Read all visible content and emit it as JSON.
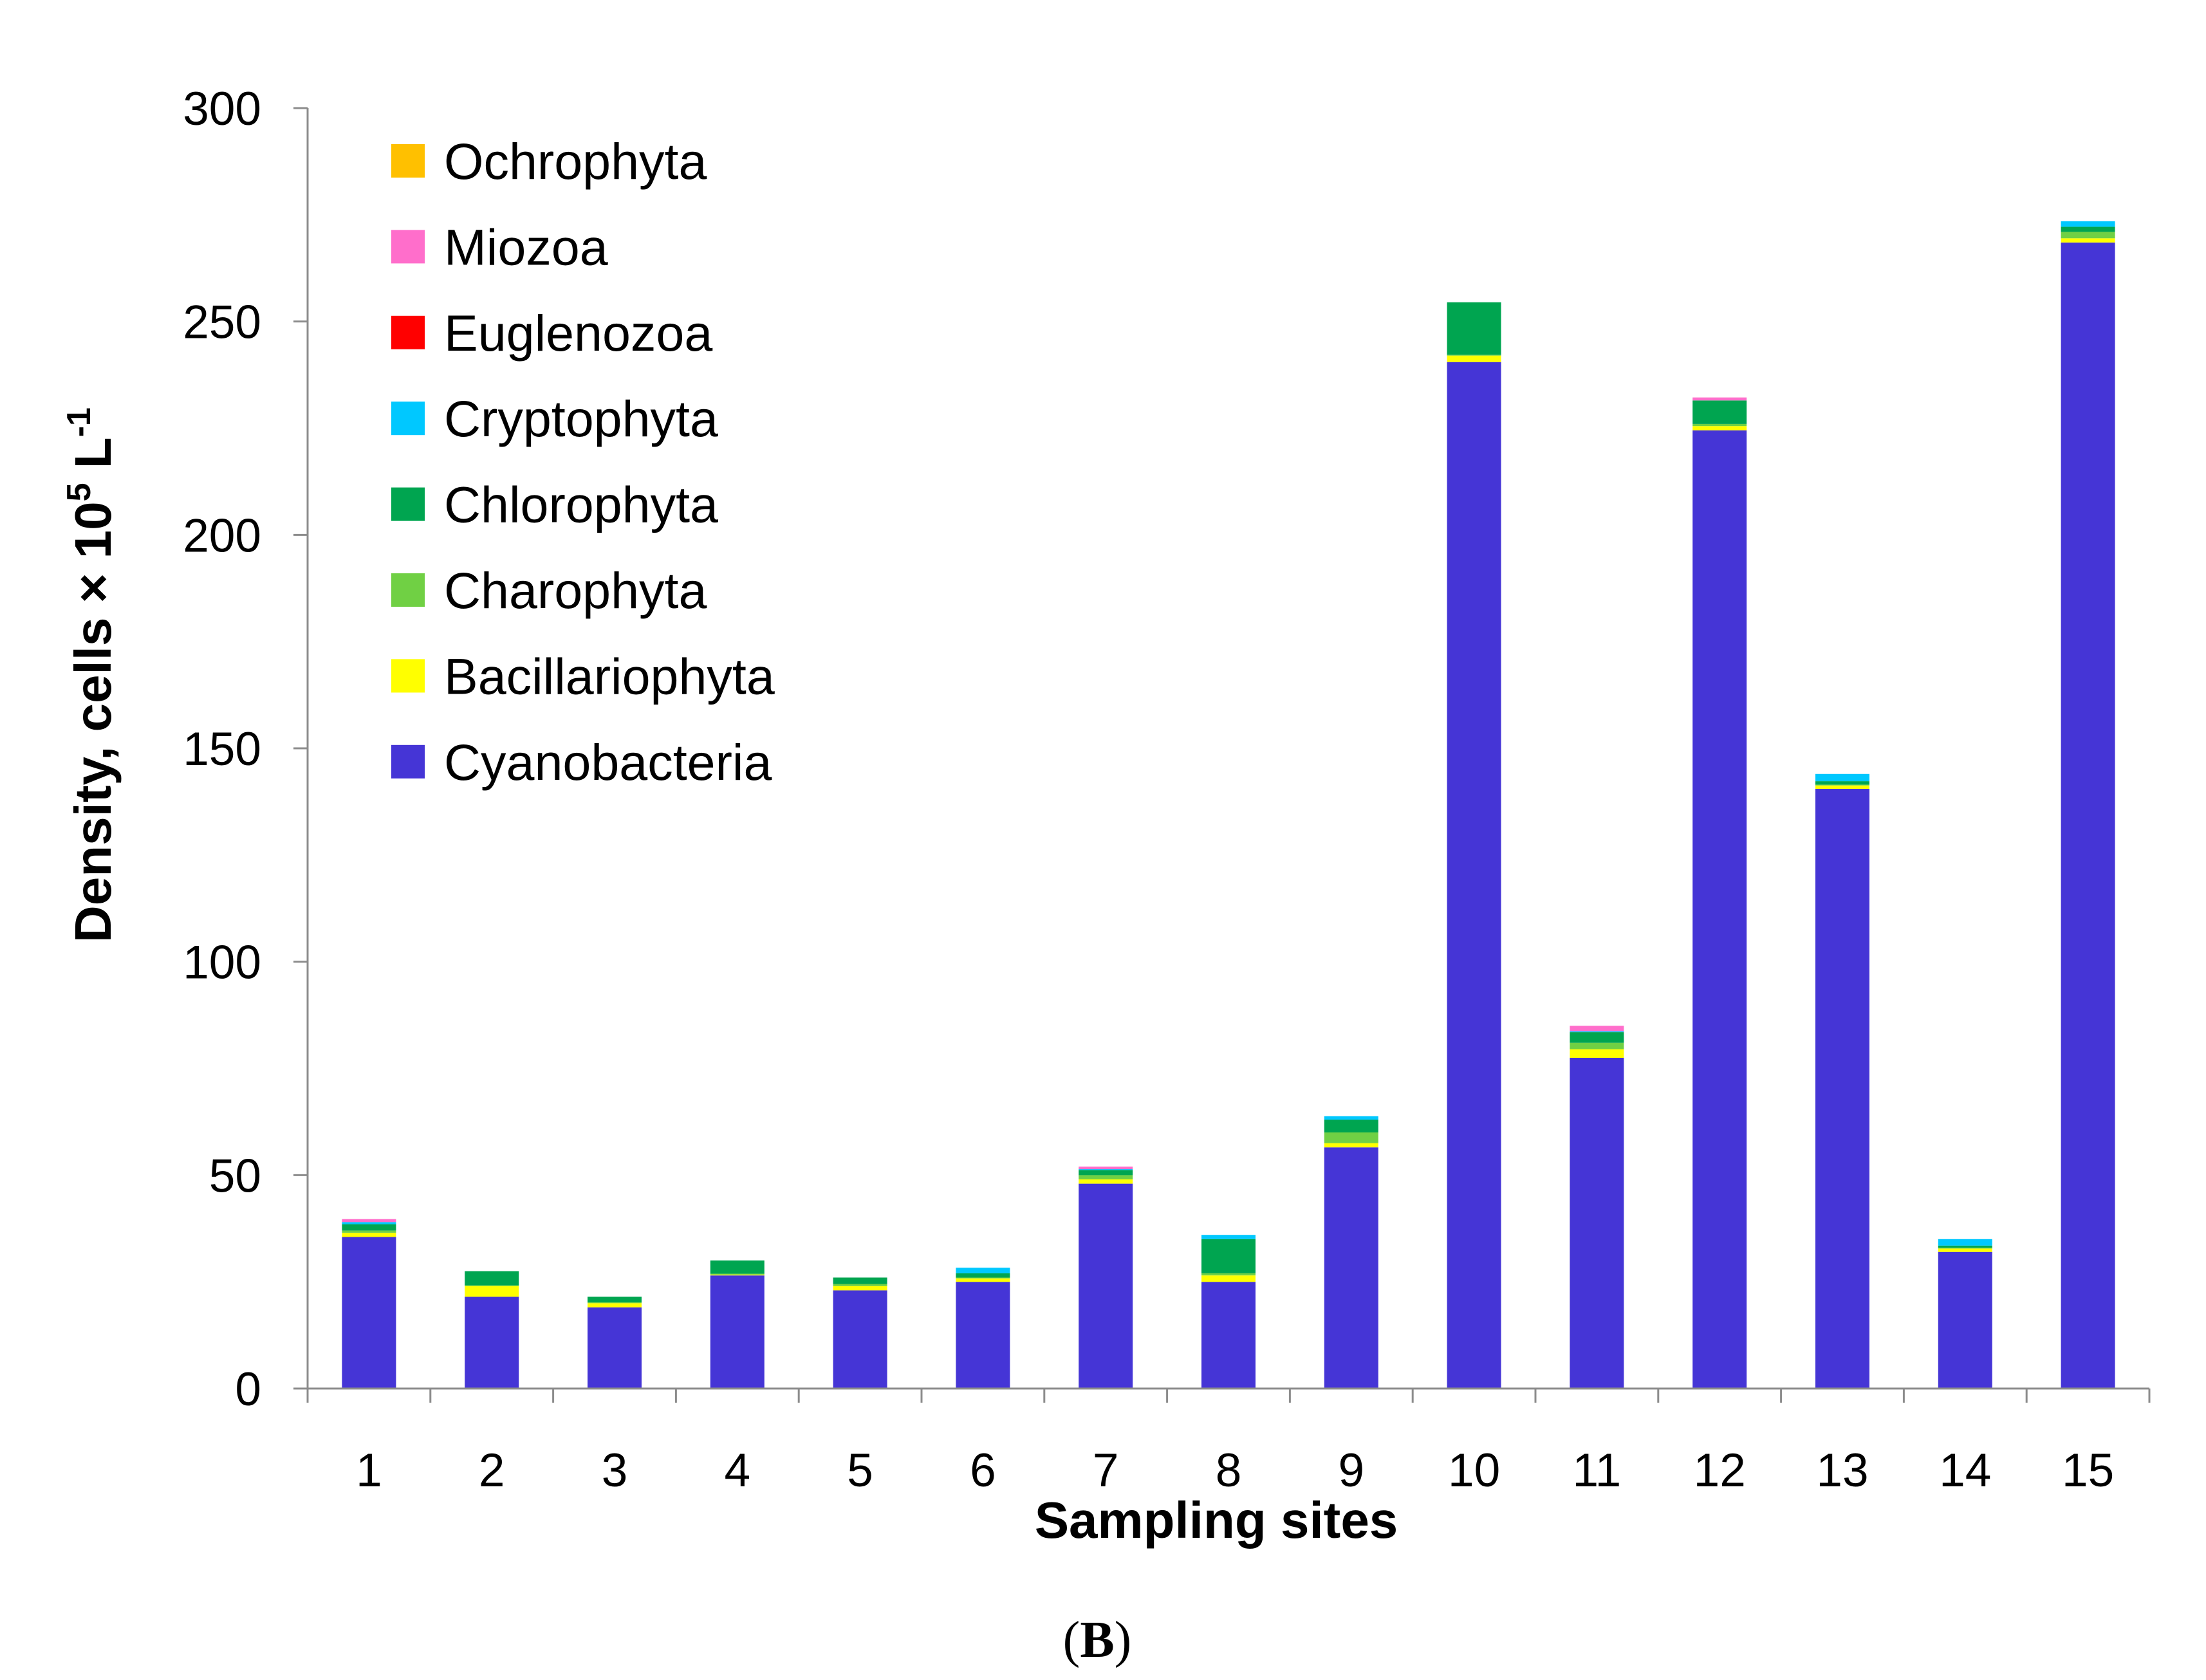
{
  "chart_data": {
    "type": "bar",
    "stacked": true,
    "title": "",
    "xlabel": "Sampling sites",
    "ylabel": "Density, cells × 10^5 L^-1",
    "ylabel_parts": {
      "main": "Density, cells × 10",
      "exp1": "5",
      "mid": " L",
      "exp2": "-1"
    },
    "ylim": [
      0,
      300
    ],
    "yticks": [
      0,
      50,
      100,
      150,
      200,
      250,
      300
    ],
    "grid": false,
    "legend_position": "top-left",
    "categories": [
      "1",
      "2",
      "3",
      "4",
      "5",
      "6",
      "7",
      "8",
      "9",
      "10",
      "11",
      "12",
      "13",
      "14",
      "15"
    ],
    "series": [
      {
        "name": "Cyanobacteria",
        "color": "#4535D6",
        "values": [
          35.5,
          21.5,
          19,
          26.5,
          23,
          25,
          48,
          25,
          56.5,
          240.5,
          77.5,
          224.5,
          140.5,
          32,
          268.5
        ]
      },
      {
        "name": "Bacillariophyta",
        "color": "#FFFF00",
        "values": [
          1,
          2.5,
          1,
          0.2,
          1,
          0.8,
          1,
          1.5,
          1,
          1.5,
          2,
          1,
          0.8,
          0.8,
          1
        ]
      },
      {
        "name": "Charophyta",
        "color": "#70D044",
        "values": [
          0.5,
          0.2,
          0.2,
          0.2,
          0.5,
          0.2,
          1,
          0.5,
          2.5,
          0.2,
          1.5,
          0.5,
          0.2,
          0.2,
          1.5
        ]
      },
      {
        "name": "Chlorophyta",
        "color": "#00A550",
        "values": [
          1.5,
          3.3,
          1.3,
          3.1,
          1.5,
          1,
          1.2,
          8,
          3,
          12.3,
          2.5,
          5.5,
          0.8,
          0.5,
          1.2
        ]
      },
      {
        "name": "Cryptophyta",
        "color": "#00C8FF",
        "values": [
          0.5,
          0,
          0,
          0,
          0,
          1.3,
          0.2,
          1,
          0.8,
          0,
          0.2,
          0,
          1.7,
          1.5,
          1.3
        ]
      },
      {
        "name": "Euglenozoa",
        "color": "#FF0000",
        "values": [
          0,
          0,
          0,
          0,
          0,
          0,
          0,
          0,
          0,
          0,
          0,
          0,
          0,
          0,
          0
        ]
      },
      {
        "name": "Miozoa",
        "color": "#FF6ECB",
        "values": [
          0.7,
          0,
          0,
          0,
          0,
          0,
          0.6,
          0,
          0,
          0,
          1.3,
          0.7,
          0,
          0,
          0
        ]
      },
      {
        "name": "Ochrophyta",
        "color": "#FFC000",
        "values": [
          0,
          0,
          0,
          0,
          0,
          0,
          0,
          0,
          0,
          0,
          0,
          0,
          0,
          0,
          0
        ]
      }
    ]
  },
  "legend_order": [
    "Ochrophyta",
    "Miozoa",
    "Euglenozoa",
    "Cryptophyta",
    "Chlorophyta",
    "Charophyta",
    "Bacillariophyta",
    "Cyanobacteria"
  ],
  "panel_label": {
    "open": "(",
    "letter": "B",
    "close": ")"
  }
}
